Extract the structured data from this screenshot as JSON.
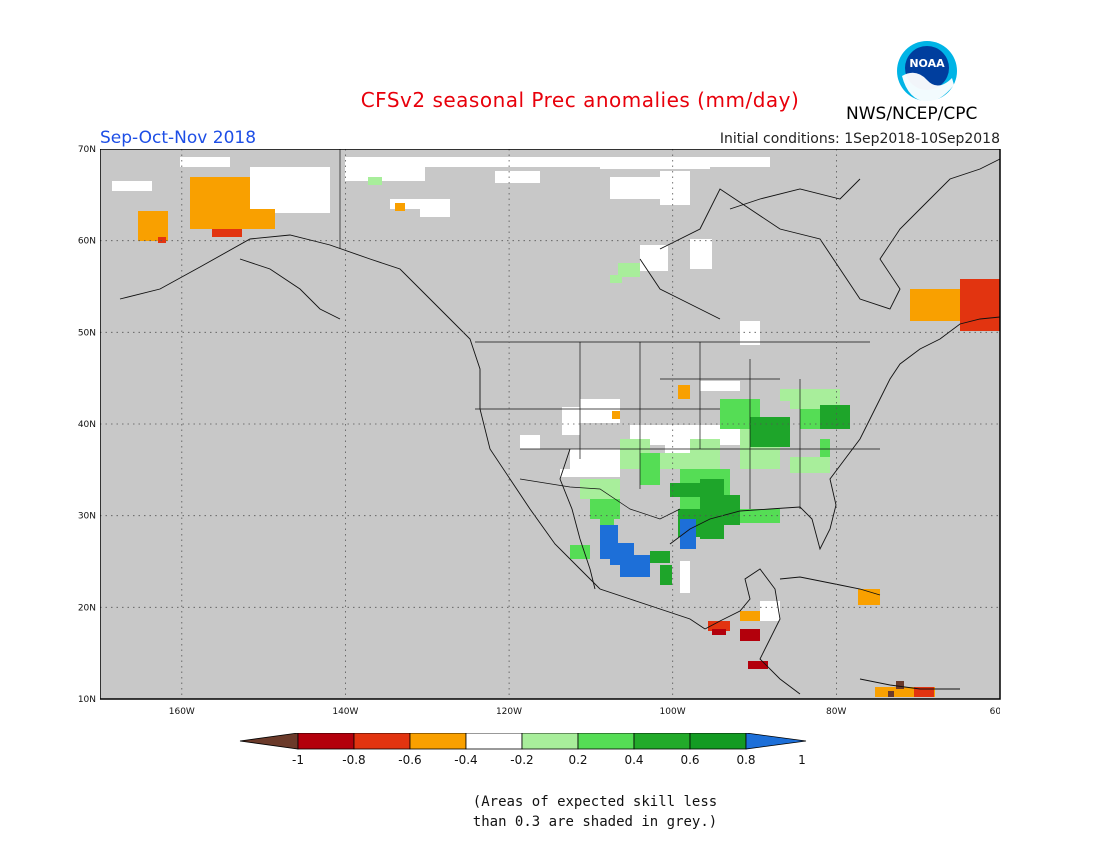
{
  "header": {
    "title": "CFSv2 seasonal Prec anomalies (mm/day)",
    "period": "Sep-Oct-Nov 2018",
    "initial_conditions": "Initial conditions: 1Sep2018-10Sep2018",
    "agency": "NWS/NCEP/CPC",
    "logo_text": "NOAA"
  },
  "map": {
    "ocean_color": "#c8c8c8",
    "lat_labels": [
      "70N",
      "60N",
      "50N",
      "40N",
      "30N",
      "20N",
      "10N"
    ],
    "lon_labels": [
      "160W",
      "140W",
      "120W",
      "100W",
      "80W",
      "60W"
    ]
  },
  "legend": {
    "labels": [
      "-1",
      "-0.8",
      "-0.6",
      "-0.4",
      "-0.2",
      "0.2",
      "0.4",
      "0.6",
      "0.8",
      "1"
    ],
    "colors": [
      "#6b3a2a",
      "#b3000c",
      "#e23410",
      "#f9a000",
      "#ffffff",
      "#a8ee9b",
      "#55dd55",
      "#22aa2a",
      "#139b23",
      "#1d6fd8"
    ]
  },
  "note": {
    "line1": "(Areas of expected skill less",
    "line2": "than 0.3 are shaded in grey.)"
  },
  "colors": {
    "title": "#e8000b",
    "period": "#1d4ee6"
  }
}
